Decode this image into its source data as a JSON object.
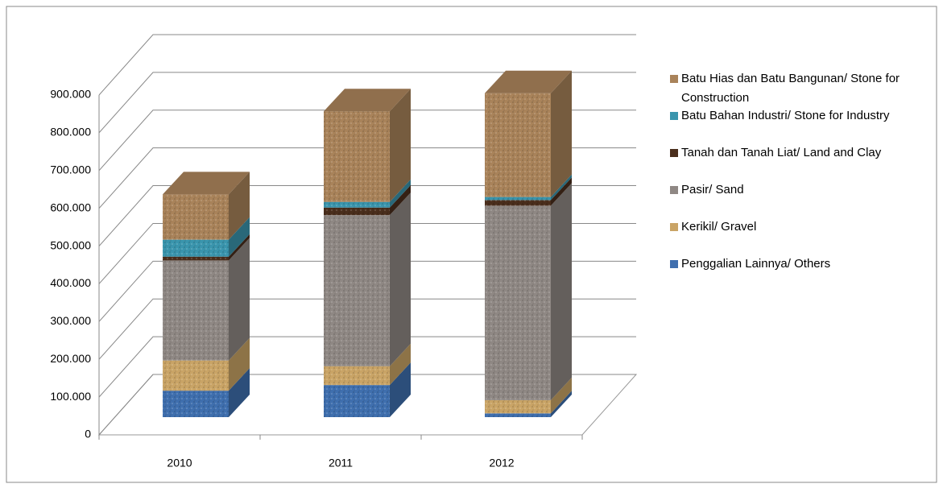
{
  "chart_data": {
    "type": "bar3d-stacked",
    "categories": [
      "2010",
      "2011",
      "2012"
    ],
    "series": [
      {
        "name": "Penggalian Lainnya/ Others",
        "color": "#3f6fae",
        "values": [
          70000,
          85000,
          10000
        ]
      },
      {
        "name": "Kerikil/ Gravel",
        "color": "#c9a466",
        "values": [
          80000,
          50000,
          35000
        ]
      },
      {
        "name": "Pasir/ Sand",
        "color": "#8f8884",
        "values": [
          265000,
          400000,
          515000
        ]
      },
      {
        "name": "Tanah dan Tanah Liat/ Land and Clay",
        "color": "#4a2e1c",
        "values": [
          10000,
          20000,
          15000
        ]
      },
      {
        "name": "Batu Bahan Industri/ Stone for Industry",
        "color": "#3a95ad",
        "values": [
          45000,
          15000,
          8000
        ]
      },
      {
        "name": "Batu Hias dan Batu Bangunan/ Stone for Construction",
        "color": "#a9835a",
        "values": [
          120000,
          240000,
          275000
        ]
      }
    ],
    "ylim": [
      0,
      900000
    ],
    "yticks": [
      0,
      {
        "value": 100000,
        "label": "100.000"
      },
      {
        "value": 200000,
        "label": "200.000"
      },
      {
        "value": 300000,
        "label": "300.000"
      },
      {
        "value": 400000,
        "label": "400.000"
      },
      {
        "value": 500000,
        "label": "500.000"
      },
      {
        "value": 600000,
        "label": "600.000"
      },
      {
        "value": 700000,
        "label": "700.000"
      },
      {
        "value": 800000,
        "label": "800.000"
      },
      {
        "value": 900000,
        "label": "900.000"
      }
    ],
    "grid": true
  }
}
